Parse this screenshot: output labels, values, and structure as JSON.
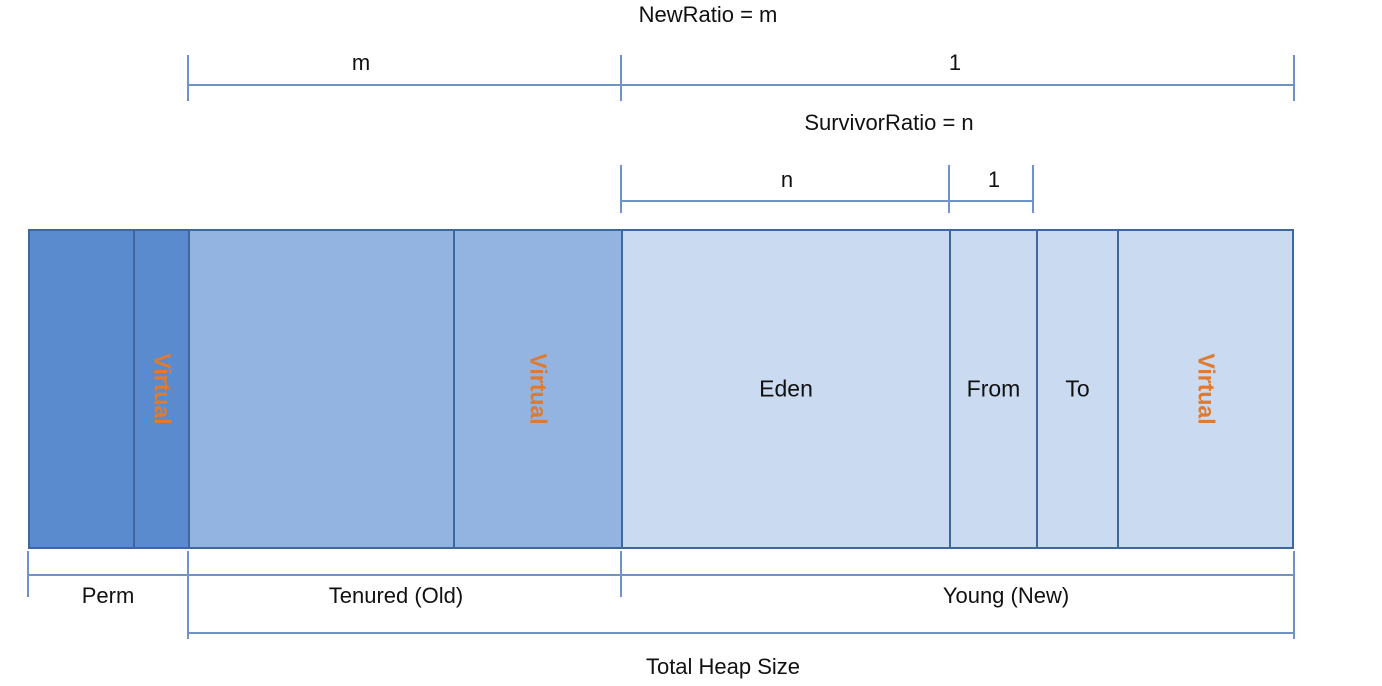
{
  "ratios": {
    "new_ratio_title": "NewRatio = m",
    "new_ratio_m": "m",
    "new_ratio_one": "1",
    "survivor_ratio_title": "SurvivorRatio = n",
    "survivor_ratio_n": "n",
    "survivor_ratio_one": "1"
  },
  "heap_blocks": {
    "virtual_label": "Virtual",
    "eden": "Eden",
    "from": "From",
    "to": "To"
  },
  "generations": {
    "perm": "Perm",
    "tenured": "Tenured (Old)",
    "young": "Young (New)",
    "total": "Total Heap Size"
  },
  "colors": {
    "perm": "#5b8bcf",
    "tenured": "#93b3e0",
    "young": "#c9daf1",
    "border": "#3d679e",
    "line": "#6f92c9",
    "virtual_text": "#e07a2e"
  }
}
